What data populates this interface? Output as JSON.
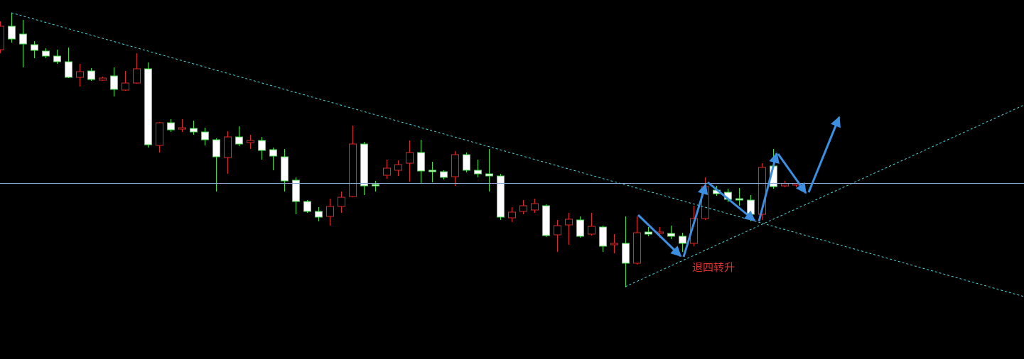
{
  "chart_data": {
    "type": "candlestick",
    "annotation": "退四转升",
    "ylim": [
      0,
      506
    ],
    "up_color": "#e02828",
    "down_color": "#ffffff",
    "down_wick_color": "#3ee03e",
    "open": [
      436,
      469,
      458,
      443,
      434,
      427,
      419,
      397,
      406,
      393,
      399,
      379,
      389,
      409,
      301,
      333,
      324,
      325,
      320,
      309,
      284,
      313,
      305,
      308,
      295,
      285,
      252,
      222,
      208,
      201,
      215,
      229,
      303,
      246,
      259,
      266,
      276,
      291,
      266,
      264,
      257,
      288,
      266,
      261,
      258,
      199,
      208,
      210,
      216,
      175,
      189,
      196,
      176,
      186,
      161,
      163,
      135,
      179,
      177,
      177,
      173,
      163,
      198,
      238,
      235,
      226,
      224,
      204,
      272,
      244,
      245
    ],
    "high": [
      476,
      488,
      478,
      448,
      438,
      436,
      439,
      416,
      410,
      398,
      411,
      406,
      431,
      418,
      334,
      338,
      338,
      336,
      326,
      311,
      321,
      328,
      316,
      313,
      298,
      296,
      256,
      224,
      214,
      226,
      236,
      329,
      306,
      251,
      281,
      280,
      308,
      309,
      278,
      266,
      293,
      291,
      281,
      296,
      261,
      214,
      224,
      226,
      218,
      196,
      206,
      201,
      206,
      188,
      176,
      201,
      201,
      186,
      186,
      188,
      178,
      216,
      256,
      244,
      240,
      241,
      231,
      276,
      296,
      251,
      248
    ],
    "low": [
      431,
      446,
      411,
      424,
      424,
      416,
      396,
      384,
      392,
      392,
      370,
      378,
      388,
      298,
      291,
      320,
      320,
      316,
      301,
      236,
      261,
      300,
      296,
      281,
      266,
      236,
      204,
      206,
      194,
      188,
      206,
      228,
      231,
      236,
      254,
      258,
      250,
      248,
      249,
      253,
      244,
      263,
      256,
      236,
      196,
      193,
      204,
      206,
      172,
      151,
      161,
      171,
      174,
      151,
      149,
      101,
      133,
      173,
      171,
      169,
      151,
      159,
      196,
      230,
      221,
      216,
      194,
      196,
      240,
      242,
      242
    ],
    "close": [
      469,
      451,
      444,
      435,
      427,
      419,
      397,
      405,
      394,
      396,
      380,
      389,
      409,
      302,
      333,
      323,
      326,
      320,
      309,
      285,
      313,
      303,
      308,
      294,
      286,
      251,
      222,
      208,
      200,
      215,
      228,
      303,
      244,
      244,
      269,
      274,
      291,
      265,
      264,
      256,
      288,
      266,
      261,
      258,
      200,
      207,
      216,
      219,
      174,
      188,
      197,
      173,
      187,
      159,
      163,
      135,
      178,
      176,
      179,
      173,
      163,
      198,
      243,
      233,
      225,
      224,
      204,
      270,
      243,
      247,
      247
    ]
  }
}
